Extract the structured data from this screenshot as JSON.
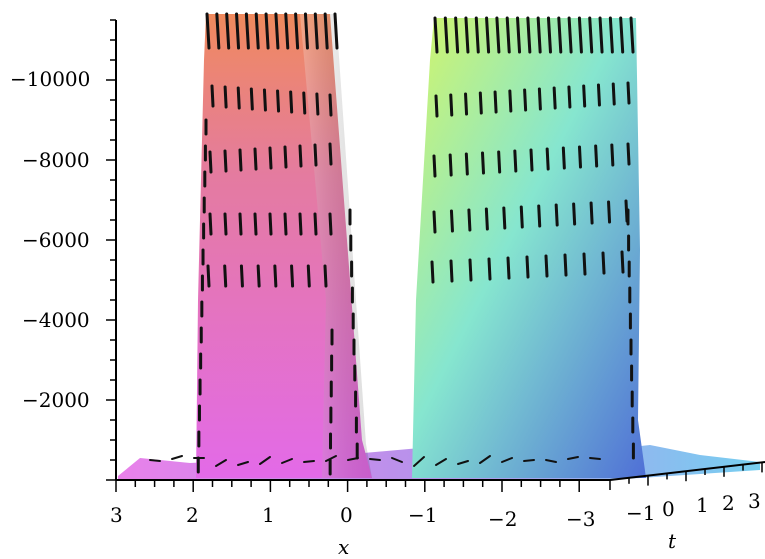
{
  "chart_data": {
    "type": "surface-3d",
    "title": "",
    "zlabel": "",
    "xlabel": "x",
    "tlabel": "t",
    "z_ticks": [
      -2000,
      -4000,
      -6000,
      -8000,
      -10000
    ],
    "z_tick_labels": [
      "−2000",
      "−4000",
      "−6000",
      "−8000",
      "−10000"
    ],
    "x_ticks": [
      3,
      2,
      1,
      0,
      -1,
      -2,
      -3
    ],
    "x_tick_labels": [
      "3",
      "2",
      "1",
      "0",
      "−1",
      "−2",
      "−3"
    ],
    "t_ticks": [
      -1,
      0,
      1,
      2,
      3
    ],
    "t_tick_labels": [
      "−1",
      "0",
      "1",
      "2",
      "3"
    ],
    "zlim": [
      0,
      -11500
    ],
    "xlim": [
      3,
      -3.6
    ],
    "peaks": [
      {
        "name": "",
        "x_range": [
          2,
          0.3
        ],
        "peak_z": -11500
      },
      {
        "name": "",
        "x_range": [
          -1,
          -3.6
        ],
        "peak_z": -11500
      }
    ],
    "grid": false,
    "colors": {
      "peak1_top": "#f08a5d",
      "peak1_bottom": "#e36ae8",
      "peak2_top": "#c9f06a",
      "peak2_bottom": "#5a7fe0",
      "base": "#a780e8",
      "dash": "#111111"
    }
  }
}
